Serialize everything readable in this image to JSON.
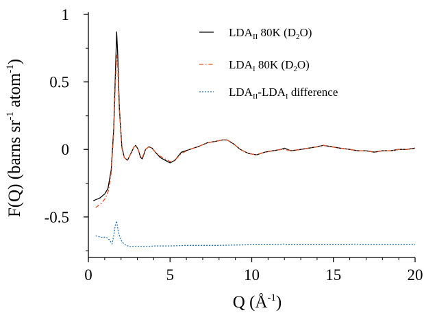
{
  "chart_data": {
    "type": "line",
    "xlabel": "Q (Å",
    "xlabel_sup": "-1",
    "xlabel_end": ")",
    "ylabel": "F(Q) (barns sr",
    "ylabel_sup1": "-1",
    "ylabel_mid": " atom",
    "ylabel_sup2": "-1",
    "ylabel_end": ")",
    "xlim": [
      0,
      20
    ],
    "ylim": [
      -0.8,
      1.0
    ],
    "x_ticks": [
      0,
      5,
      10,
      15,
      20
    ],
    "x_tick_labels": [
      "0",
      "5",
      "10",
      "15",
      "20"
    ],
    "y_ticks": [
      1,
      0.5,
      0,
      -0.5
    ],
    "y_tick_labels": [
      "1",
      "0.5",
      "0",
      "-0.5"
    ],
    "legend_position": "top-right",
    "series": [
      {
        "name": "LDA",
        "name_sub": "II",
        "name_rest": " 80K (D",
        "name_sub2": "2",
        "name_end": "O)",
        "color": "#000000",
        "dash": "solid",
        "points": [
          [
            0.3,
            -0.38
          ],
          [
            0.7,
            -0.36
          ],
          [
            1.0,
            -0.33
          ],
          [
            1.2,
            -0.29
          ],
          [
            1.4,
            -0.15
          ],
          [
            1.55,
            0.15
          ],
          [
            1.65,
            0.55
          ],
          [
            1.73,
            0.87
          ],
          [
            1.8,
            0.7
          ],
          [
            1.9,
            0.3
          ],
          [
            2.05,
            0.02
          ],
          [
            2.2,
            -0.06
          ],
          [
            2.4,
            -0.08
          ],
          [
            2.6,
            -0.03
          ],
          [
            2.8,
            0.02
          ],
          [
            2.9,
            0.03
          ],
          [
            3.05,
            0.0
          ],
          [
            3.2,
            -0.06
          ],
          [
            3.3,
            -0.07
          ],
          [
            3.5,
            0.0
          ],
          [
            3.7,
            0.02
          ],
          [
            3.9,
            0.01
          ],
          [
            4.1,
            -0.02
          ],
          [
            4.4,
            -0.06
          ],
          [
            4.7,
            -0.08
          ],
          [
            5.0,
            -0.1
          ],
          [
            5.3,
            -0.08
          ],
          [
            5.7,
            -0.02
          ],
          [
            6.2,
            0.0
          ],
          [
            6.7,
            0.02
          ],
          [
            7.3,
            0.05
          ],
          [
            7.8,
            0.06
          ],
          [
            8.2,
            0.07
          ],
          [
            8.5,
            0.07
          ],
          [
            8.9,
            0.04
          ],
          [
            9.3,
            0.0
          ],
          [
            9.8,
            -0.03
          ],
          [
            10.3,
            -0.04
          ],
          [
            10.8,
            -0.02
          ],
          [
            11.3,
            -0.01
          ],
          [
            11.8,
            0.0
          ],
          [
            12.0,
            0.01
          ],
          [
            12.4,
            -0.01
          ],
          [
            13.0,
            0.0
          ],
          [
            13.5,
            0.01
          ],
          [
            14.0,
            0.02
          ],
          [
            14.4,
            0.03
          ],
          [
            14.9,
            0.02
          ],
          [
            15.4,
            0.01
          ],
          [
            16.0,
            0.0
          ],
          [
            16.5,
            -0.01
          ],
          [
            17.0,
            -0.01
          ],
          [
            17.5,
            -0.02
          ],
          [
            18.0,
            -0.01
          ],
          [
            18.5,
            -0.01
          ],
          [
            19.0,
            0.0
          ],
          [
            19.5,
            0.0
          ],
          [
            20.0,
            0.01
          ]
        ]
      },
      {
        "name": "LDA",
        "name_sub": "I",
        "name_rest": " 80K (D",
        "name_sub2": "2",
        "name_end": "O)",
        "color": "#e8501e",
        "dash": "dashdot",
        "points": [
          [
            0.45,
            -0.43
          ],
          [
            0.8,
            -0.4
          ],
          [
            1.05,
            -0.36
          ],
          [
            1.25,
            -0.3
          ],
          [
            1.4,
            -0.17
          ],
          [
            1.55,
            0.12
          ],
          [
            1.65,
            0.48
          ],
          [
            1.73,
            0.7
          ],
          [
            1.8,
            0.6
          ],
          [
            1.9,
            0.28
          ],
          [
            2.05,
            0.01
          ],
          [
            2.2,
            -0.06
          ],
          [
            2.4,
            -0.08
          ],
          [
            2.6,
            -0.03
          ],
          [
            2.8,
            0.02
          ],
          [
            2.9,
            0.03
          ],
          [
            3.05,
            0.0
          ],
          [
            3.2,
            -0.05
          ],
          [
            3.3,
            -0.06
          ],
          [
            3.5,
            0.0
          ],
          [
            3.7,
            0.02
          ],
          [
            3.9,
            0.01
          ],
          [
            4.1,
            -0.02
          ],
          [
            4.4,
            -0.05
          ],
          [
            4.7,
            -0.07
          ],
          [
            5.0,
            -0.09
          ],
          [
            5.3,
            -0.08
          ],
          [
            5.7,
            -0.03
          ],
          [
            6.2,
            0.0
          ],
          [
            6.7,
            0.02
          ],
          [
            7.3,
            0.05
          ],
          [
            7.8,
            0.06
          ],
          [
            8.2,
            0.07
          ],
          [
            8.5,
            0.07
          ],
          [
            8.9,
            0.04
          ],
          [
            9.3,
            0.0
          ],
          [
            9.8,
            -0.03
          ],
          [
            10.3,
            -0.04
          ],
          [
            10.8,
            -0.02
          ],
          [
            11.3,
            -0.01
          ],
          [
            11.8,
            0.0
          ],
          [
            12.0,
            0.0
          ],
          [
            12.4,
            -0.01
          ],
          [
            13.0,
            0.0
          ],
          [
            13.5,
            0.01
          ],
          [
            14.0,
            0.02
          ],
          [
            14.4,
            0.03
          ],
          [
            14.9,
            0.02
          ],
          [
            15.4,
            0.01
          ],
          [
            16.0,
            0.0
          ],
          [
            16.5,
            -0.01
          ],
          [
            17.0,
            -0.01
          ],
          [
            17.5,
            -0.02
          ],
          [
            18.0,
            -0.01
          ],
          [
            18.5,
            -0.01
          ],
          [
            19.0,
            0.0
          ],
          [
            19.5,
            0.0
          ],
          [
            20.0,
            0.01
          ]
        ]
      },
      {
        "name": "LDA",
        "name_sub": "II",
        "name_rest": "-LDA",
        "name_sub2": "I",
        "name_end": " difference",
        "color": "#1f6fb4",
        "dash": "dotted",
        "points": [
          [
            0.45,
            -0.64
          ],
          [
            0.8,
            -0.65
          ],
          [
            1.1,
            -0.65
          ],
          [
            1.3,
            -0.67
          ],
          [
            1.45,
            -0.7
          ],
          [
            1.55,
            -0.64
          ],
          [
            1.65,
            -0.56
          ],
          [
            1.73,
            -0.53
          ],
          [
            1.82,
            -0.6
          ],
          [
            1.95,
            -0.66
          ],
          [
            2.1,
            -0.69
          ],
          [
            2.3,
            -0.71
          ],
          [
            2.6,
            -0.72
          ],
          [
            3.0,
            -0.72
          ],
          [
            3.5,
            -0.72
          ],
          [
            4.0,
            -0.715
          ],
          [
            5.0,
            -0.715
          ],
          [
            6.0,
            -0.71
          ],
          [
            8.0,
            -0.71
          ],
          [
            10.0,
            -0.705
          ],
          [
            11.5,
            -0.705
          ],
          [
            12.0,
            -0.7
          ],
          [
            12.2,
            -0.705
          ],
          [
            14.0,
            -0.705
          ],
          [
            16.0,
            -0.705
          ],
          [
            16.4,
            -0.7
          ],
          [
            16.6,
            -0.705
          ],
          [
            18.0,
            -0.705
          ],
          [
            20.0,
            -0.705
          ]
        ]
      }
    ]
  }
}
